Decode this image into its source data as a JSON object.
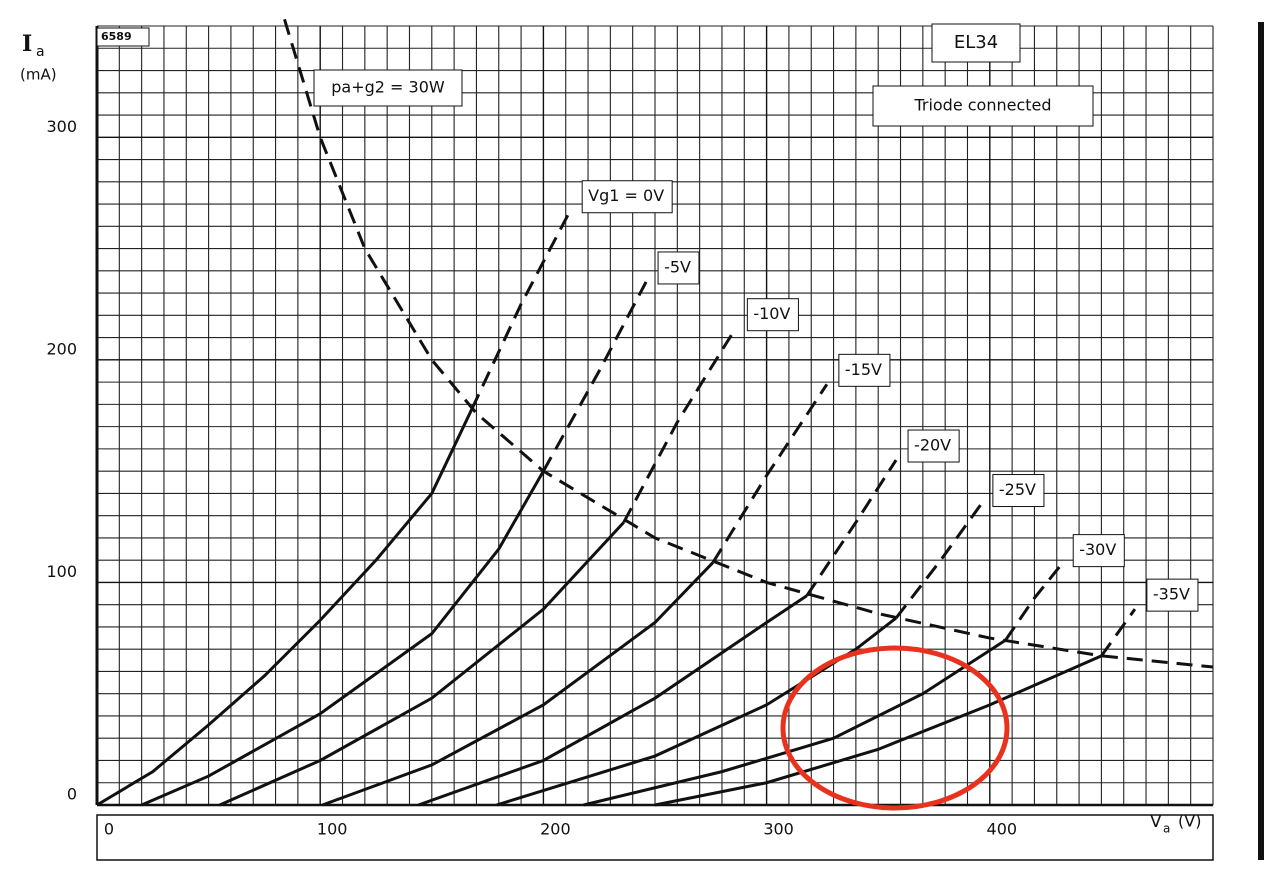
{
  "chart_data": {
    "type": "line",
    "sheet_code": "6589",
    "title": "EL34",
    "subtitle": "Triode connected",
    "ylabel_symbol": "I",
    "ylabel_sub": "a",
    "ylabel_unit": "(mA)",
    "xlabel_symbol": "V",
    "xlabel_sub": "a",
    "xlabel_unit": "(V)",
    "xlim": [
      0,
      500
    ],
    "ylim": [
      0,
      350
    ],
    "xticks": [
      0,
      100,
      200,
      300,
      400
    ],
    "yticks": [
      0,
      100,
      200,
      300
    ],
    "grid": true,
    "grid_step": 10,
    "color": "#111111",
    "limit_curve": {
      "name": "pa+g2 = 30W",
      "x": [
        84,
        100,
        120,
        150,
        170,
        200,
        250,
        300,
        350,
        400,
        450,
        500
      ],
      "values": [
        353,
        300,
        250,
        200,
        176,
        150,
        120,
        100,
        86,
        75,
        67,
        62
      ]
    },
    "series": [
      {
        "name": "Vg1 = 0V",
        "x": [
          0,
          25,
          50,
          75,
          100,
          125,
          150,
          168,
          190,
          212
        ],
        "values": [
          0,
          15,
          36,
          58,
          83,
          110,
          140,
          178,
          225,
          267
        ]
      },
      {
        "name": "-5V",
        "x": [
          20,
          50,
          100,
          150,
          180,
          200,
          225,
          246
        ],
        "values": [
          0,
          13,
          41,
          77,
          115,
          150,
          195,
          235
        ]
      },
      {
        "name": "-10V",
        "x": [
          55,
          100,
          150,
          200,
          236,
          260,
          286
        ],
        "values": [
          0,
          20,
          48,
          88,
          127,
          172,
          214
        ]
      },
      {
        "name": "-15V",
        "x": [
          101,
          150,
          200,
          250,
          276,
          300,
          327
        ],
        "values": [
          0,
          18,
          45,
          82,
          109,
          148,
          189
        ]
      },
      {
        "name": "-20V",
        "x": [
          144,
          200,
          250,
          300,
          318,
          340,
          358
        ],
        "values": [
          0,
          20,
          48,
          82,
          94,
          127,
          155
        ]
      },
      {
        "name": "-25V",
        "x": [
          179,
          250,
          300,
          340,
          358,
          378,
          396
        ],
        "values": [
          0,
          22,
          45,
          70,
          84,
          110,
          135
        ]
      },
      {
        "name": "-30V",
        "x": [
          218,
          280,
          330,
          370,
          407,
          420,
          432
        ],
        "values": [
          0,
          15,
          30,
          50,
          74,
          93,
          108
        ]
      },
      {
        "name": "-35V",
        "x": [
          250,
          300,
          350,
          400,
          450,
          465
        ],
        "values": [
          0,
          10,
          25,
          45,
          67,
          88
        ]
      }
    ]
  }
}
